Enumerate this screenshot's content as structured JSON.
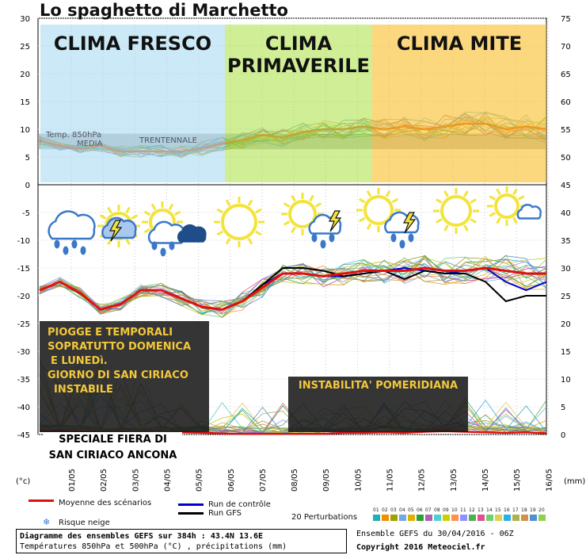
{
  "title": "Lo spaghetto di Marchetto",
  "panels": {
    "fresco": "CLIMA FRESCO",
    "primaverile_1": "CLIMA",
    "primaverile_2": "PRIMAVERILE",
    "mite": "CLIMA MITE"
  },
  "overlay": {
    "temp_label": "Temp. 850hPa",
    "media_label": "MEDIA",
    "trentennale_label": "TRENTENNALE"
  },
  "annotations": {
    "piogge": [
      "PIOGGE E TEMPORALI",
      "SOPRATUTTO DOMENICA",
      "E LUNEDì.",
      "GIORNO DI SAN CIRIACO",
      "INSTABILE"
    ],
    "instabilita": "INSTABILITA' POMERIDIANA",
    "fiera": [
      "SPECIALE FIERA DI",
      "SAN CIRIACO ANCONA"
    ]
  },
  "weather_icons": [
    "rain-thunder-icon",
    "sun-cloud-rain-icon",
    "sun-icon",
    "sun-thunder-icon",
    "sun-thunder-icon",
    "sun-icon",
    "sun-cloud-icon"
  ],
  "colors": {
    "fresco": "#a8daf0",
    "primaverile": "#a8e040",
    "mite": "#f8c030",
    "mean": "#e01010",
    "control": "#0000cc",
    "gfs": "#000000"
  },
  "chart_data": {
    "type": "line",
    "x_dates": [
      "01/05",
      "02/05",
      "03/05",
      "04/05",
      "05/05",
      "06/05",
      "07/05",
      "08/05",
      "09/05",
      "10/05",
      "11/05",
      "12/05",
      "13/05",
      "14/05",
      "15/05",
      "16/05"
    ],
    "left_axis": {
      "label": "(°c)",
      "ticks": [
        30,
        25,
        20,
        15,
        10,
        5,
        0,
        -5,
        -10,
        -15,
        -20,
        -25,
        -30,
        -35,
        -40,
        -45
      ]
    },
    "right_axis": {
      "label": "(mm)",
      "ticks": [
        75,
        70,
        65,
        60,
        55,
        50,
        45,
        40,
        35,
        30,
        25,
        20,
        15,
        10,
        5,
        0
      ]
    },
    "t850_mean": [
      8,
      7,
      6.5,
      7,
      6,
      6,
      6,
      6,
      6.5,
      7.5,
      8,
      9,
      8.5,
      9.5,
      10,
      10,
      10.5,
      10,
      10.5,
      10,
      10.5,
      11,
      11,
      10,
      10.5,
      10
    ],
    "t500_mean": [
      -19,
      -17.5,
      -19.5,
      -22.5,
      -21.5,
      -19,
      -19,
      -20.5,
      -22,
      -22.5,
      -21,
      -18.5,
      -16,
      -16,
      -16.5,
      -16,
      -15.5,
      -15.5,
      -15.5,
      -15,
      -15.5,
      -15.5,
      -15,
      -15.5,
      -16,
      -16
    ],
    "t500_control": [
      -19,
      -17.5,
      -19.5,
      -22.5,
      -21.5,
      -19,
      -19,
      -20.5,
      -22,
      -22.5,
      -21,
      -18,
      -16,
      -16,
      -16.5,
      -16.5,
      -16,
      -15.5,
      -15,
      -15.5,
      -16,
      -15.5,
      -15,
      -17.5,
      -19,
      -17.5
    ],
    "t500_gfs": [
      -19,
      -17.5,
      -19.5,
      -22.5,
      -21.5,
      -19,
      -19,
      -20.5,
      -22,
      -22.5,
      -21,
      -18,
      -15,
      -15,
      -15.5,
      -16.5,
      -16,
      -15.5,
      -17,
      -15.5,
      -16,
      -16,
      -17.5,
      -21,
      -20,
      -20
    ],
    "precip_mean": [
      0.6,
      0.6,
      0.5,
      0.4,
      0.3,
      0.2,
      0.3,
      0.4,
      0.3,
      0.2,
      0.1,
      0.1,
      0.1,
      0.1,
      0.1,
      0.3,
      0.3,
      0.4,
      0.3,
      0.5,
      0.6,
      0.5,
      0.4,
      0.3,
      0.4,
      0.2
    ]
  },
  "legend": {
    "mean": "Moyenne des scénarios",
    "control": "Run de contrôle",
    "gfs": "Run GFS",
    "snow": "Risque neige",
    "perturbations": "20 Perturbations",
    "pert_numbers": [
      "01",
      "02",
      "03",
      "04",
      "05",
      "06",
      "07",
      "08",
      "09",
      "10",
      "11",
      "12",
      "13",
      "14",
      "15",
      "16",
      "17",
      "18",
      "19",
      "20"
    ]
  },
  "info": {
    "line1": "Diagramme des ensembles GEFS sur 384h : 43.4N 13.6E",
    "line2": "Températures 850hPa et 500hPa (°C) , précipitations (mm)",
    "ensemble": "Ensemble GEFS du 30/04/2016 - 06Z",
    "copyright": "Copyright 2016 Meteociel.fr"
  }
}
